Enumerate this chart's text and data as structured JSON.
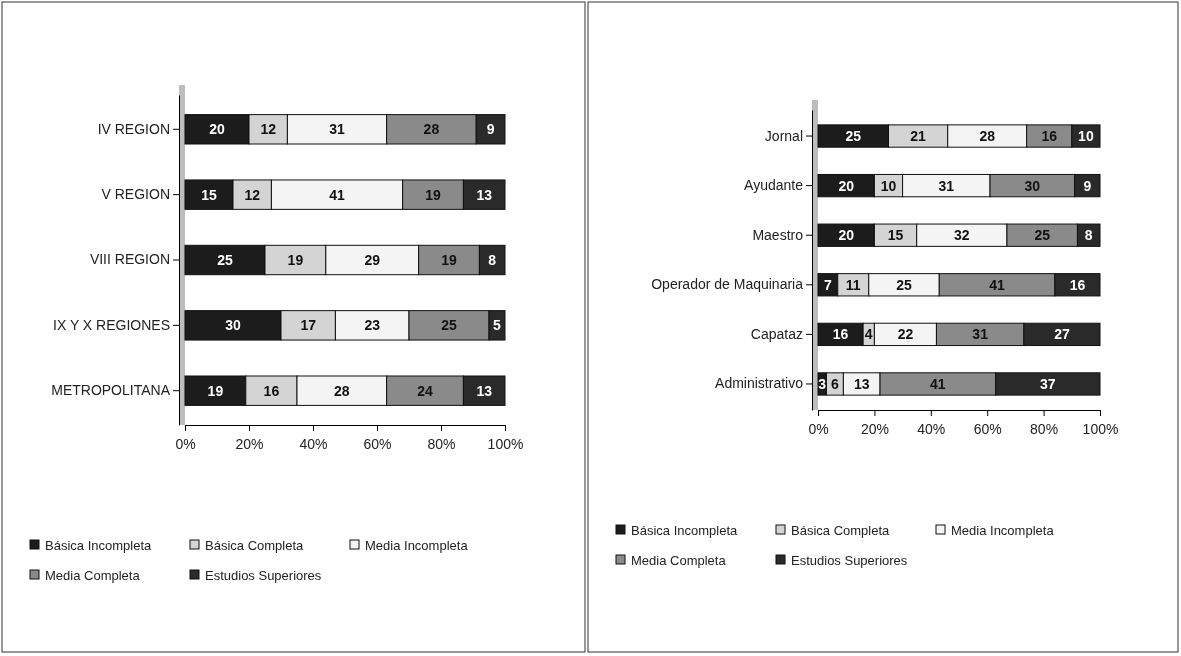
{
  "chart_data": [
    {
      "type": "bar",
      "orientation": "horizontal",
      "stacked": true,
      "data_labels": true,
      "legend": "bottom",
      "grid": false,
      "categories": [
        "IV REGION",
        "V REGION",
        "VIII REGION",
        "IX Y X REGIONES",
        "METROPOLITANA"
      ],
      "xlim": [
        0,
        100
      ],
      "xticks": [
        {
          "value": 0,
          "label": "0%"
        },
        {
          "value": 20,
          "label": "20%"
        },
        {
          "value": 40,
          "label": "40%"
        },
        {
          "value": 60,
          "label": "60%"
        },
        {
          "value": 80,
          "label": "80%"
        },
        {
          "value": 100,
          "label": "100%"
        }
      ],
      "series": [
        {
          "name": "Básica Incompleta",
          "color": "#1c1c1c",
          "values": [
            20,
            15,
            25,
            30,
            19
          ]
        },
        {
          "name": "Básica Completa",
          "color": "#d4d4d4",
          "values": [
            12,
            12,
            19,
            17,
            16
          ]
        },
        {
          "name": "Media Incompleta",
          "color": "#f4f4f4",
          "values": [
            31,
            41,
            29,
            23,
            28
          ]
        },
        {
          "name": "Media Completa",
          "color": "#8a8a8a",
          "values": [
            28,
            19,
            19,
            25,
            24
          ]
        },
        {
          "name": "Estudios Superiores",
          "color": "#2a2a2a",
          "values": [
            9,
            13,
            8,
            5,
            13
          ]
        }
      ]
    },
    {
      "type": "bar",
      "orientation": "horizontal",
      "stacked": true,
      "data_labels": true,
      "legend": "bottom",
      "grid": false,
      "categories": [
        "Jornal",
        "Ayudante",
        "Maestro",
        "Operador de Maquinaria",
        "Capataz",
        "Administrativo"
      ],
      "xlim": [
        0,
        100
      ],
      "xticks": [
        {
          "value": 0,
          "label": "0%"
        },
        {
          "value": 20,
          "label": "20%"
        },
        {
          "value": 40,
          "label": "40%"
        },
        {
          "value": 60,
          "label": "60%"
        },
        {
          "value": 80,
          "label": "80%"
        },
        {
          "value": 100,
          "label": "100%"
        }
      ],
      "series": [
        {
          "name": "Básica Incompleta",
          "color": "#1c1c1c",
          "values": [
            25,
            20,
            20,
            7,
            16,
            3
          ]
        },
        {
          "name": "Básica Completa",
          "color": "#d4d4d4",
          "values": [
            21,
            10,
            15,
            11,
            4,
            6
          ]
        },
        {
          "name": "Media Incompleta",
          "color": "#f4f4f4",
          "values": [
            28,
            31,
            32,
            25,
            22,
            13
          ]
        },
        {
          "name": "Media Completa",
          "color": "#8a8a8a",
          "values": [
            16,
            30,
            25,
            41,
            31,
            41
          ]
        },
        {
          "name": "Estudios Superiores",
          "color": "#2a2a2a",
          "values": [
            10,
            9,
            8,
            16,
            27,
            37
          ]
        }
      ]
    }
  ]
}
